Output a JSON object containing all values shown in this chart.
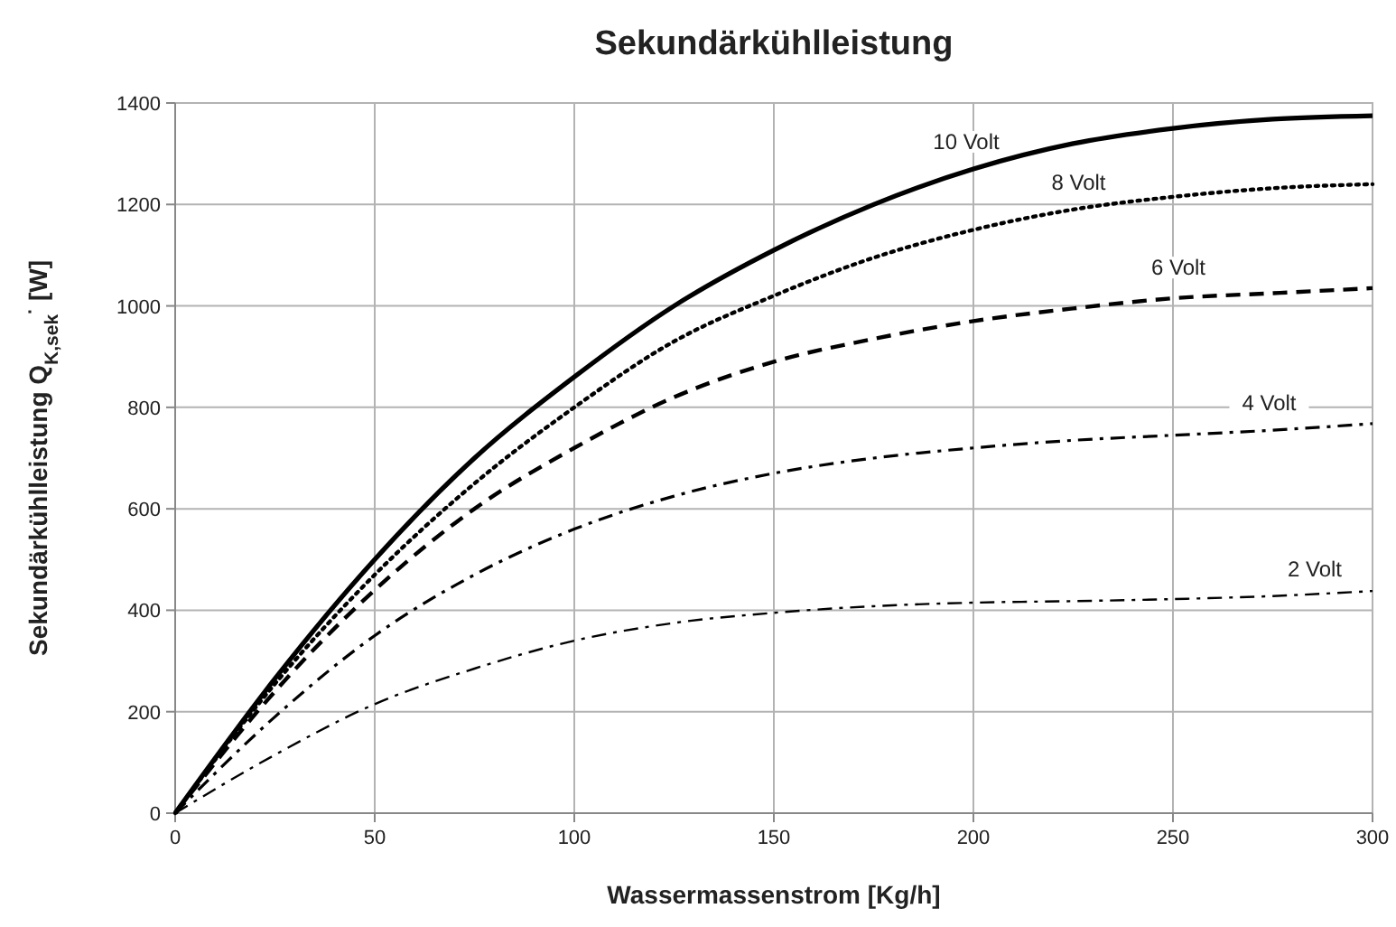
{
  "chart_data": {
    "type": "line",
    "title": "Sekundärkühlleistung",
    "xlabel": "Wassermassenstrom [Kg/h]",
    "ylabel": "Sekundärkühlleistung Q$_{K,sek}$$^{·}$ [W]",
    "x": [
      0,
      25,
      50,
      75,
      100,
      125,
      150,
      175,
      200,
      225,
      250,
      275,
      300
    ],
    "xlim": [
      0,
      300
    ],
    "xticks": [
      0,
      50,
      100,
      150,
      200,
      250,
      300
    ],
    "ylim": [
      0,
      1400
    ],
    "yticks": [
      0,
      200,
      400,
      600,
      800,
      1000,
      1200,
      1400
    ],
    "grid": true,
    "marker": "none",
    "series": [
      {
        "name": "10 Volt",
        "color": "#000000",
        "line_style": "solid",
        "values": [
          0,
          265,
          500,
          700,
          860,
          1000,
          1110,
          1200,
          1270,
          1320,
          1350,
          1368,
          1375
        ]
      },
      {
        "name": "8 Volt",
        "color": "#000000",
        "line_style": "dotted",
        "values": [
          0,
          255,
          470,
          650,
          800,
          930,
          1020,
          1095,
          1150,
          1190,
          1215,
          1232,
          1240
        ]
      },
      {
        "name": "6 Volt",
        "color": "#000000",
        "line_style": "dashed",
        "values": [
          0,
          240,
          440,
          600,
          720,
          820,
          890,
          935,
          970,
          995,
          1015,
          1025,
          1035
        ]
      },
      {
        "name": "4 Volt",
        "color": "#000000",
        "line_style": "dashdot",
        "values": [
          0,
          190,
          350,
          470,
          560,
          625,
          670,
          700,
          720,
          735,
          745,
          755,
          768
        ]
      },
      {
        "name": "2 Volt",
        "color": "#000000",
        "line_style": "dashdot",
        "values": [
          0,
          115,
          215,
          285,
          340,
          375,
          395,
          408,
          415,
          418,
          422,
          428,
          438
        ]
      }
    ]
  }
}
